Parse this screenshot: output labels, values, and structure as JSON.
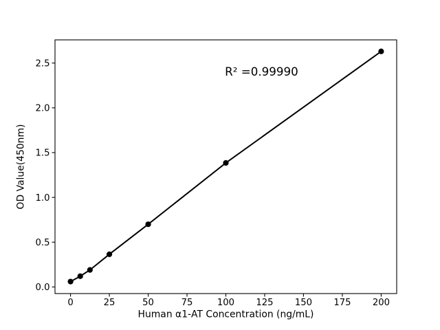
{
  "chart_data": {
    "type": "scatter",
    "title": "",
    "xlabel": "Human α1-AT Concentration (ng/mL)",
    "ylabel": "OD Value(450nm)",
    "x": [
      0,
      6.25,
      12.5,
      25,
      50,
      100,
      200
    ],
    "y": [
      0.06,
      0.12,
      0.19,
      0.365,
      0.7,
      1.385,
      2.63
    ],
    "line_through_points": true,
    "annotation": {
      "text": "R² =0.99990",
      "x": 99.4,
      "y": 2.358
    },
    "xlim": [
      -10,
      210
    ],
    "ylim": [
      -0.0738,
      2.7588
    ],
    "xticks": [
      0,
      25,
      50,
      75,
      100,
      125,
      150,
      175,
      200
    ],
    "yticks": [
      0.0,
      0.5,
      1.0,
      1.5,
      2.0,
      2.5
    ],
    "grid": false,
    "legend_position": "none",
    "marker_color": "#000000",
    "line_color": "#000000",
    "background_color": "#ffffff"
  }
}
